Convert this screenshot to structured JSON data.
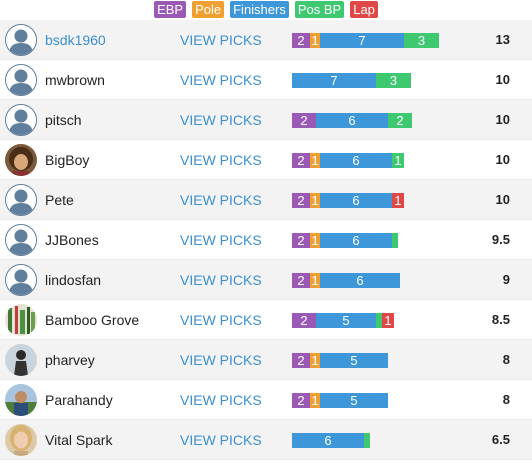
{
  "legend": [
    {
      "key": "ebp",
      "label": "EBP",
      "color": "#9b59b6"
    },
    {
      "key": "pole",
      "label": "Pole",
      "color": "#f0a030"
    },
    {
      "key": "fin",
      "label": "Finishers",
      "color": "#3d97d8"
    },
    {
      "key": "posbp",
      "label": "Pos BP",
      "color": "#3ec870"
    },
    {
      "key": "lap",
      "label": "Lap",
      "color": "#e04848"
    }
  ],
  "view_label": "VIEW PICKS",
  "rows": [
    {
      "name": "bsdk1960",
      "self": true,
      "avatar": "default",
      "score": "13",
      "segments": [
        {
          "k": "ebp",
          "v": "2",
          "w": 18
        },
        {
          "k": "pole",
          "v": "1",
          "w": 10
        },
        {
          "k": "fin",
          "v": "7",
          "w": 84
        },
        {
          "k": "posbp",
          "v": "3",
          "w": 35
        }
      ]
    },
    {
      "name": "mwbrown",
      "self": false,
      "avatar": "default",
      "score": "10",
      "segments": [
        {
          "k": "fin",
          "v": "7",
          "w": 84
        },
        {
          "k": "posbp",
          "v": "3",
          "w": 35
        }
      ]
    },
    {
      "name": "pitsch",
      "self": false,
      "avatar": "default",
      "score": "10",
      "segments": [
        {
          "k": "ebp",
          "v": "2",
          "w": 24
        },
        {
          "k": "fin",
          "v": "6",
          "w": 72
        },
        {
          "k": "posbp",
          "v": "2",
          "w": 24
        }
      ]
    },
    {
      "name": "BigBoy",
      "self": false,
      "avatar": "photo-curly-hair",
      "score": "10",
      "segments": [
        {
          "k": "ebp",
          "v": "2",
          "w": 18
        },
        {
          "k": "pole",
          "v": "1",
          "w": 10
        },
        {
          "k": "fin",
          "v": "6",
          "w": 72
        },
        {
          "k": "posbp",
          "v": "1",
          "w": 12
        }
      ]
    },
    {
      "name": "Pete",
      "self": false,
      "avatar": "default",
      "score": "10",
      "segments": [
        {
          "k": "ebp",
          "v": "2",
          "w": 18
        },
        {
          "k": "pole",
          "v": "1",
          "w": 10
        },
        {
          "k": "fin",
          "v": "6",
          "w": 72
        },
        {
          "k": "lap",
          "v": "1",
          "w": 12
        }
      ]
    },
    {
      "name": "JJBones",
      "self": false,
      "avatar": "default",
      "score": "9.5",
      "segments": [
        {
          "k": "ebp",
          "v": "2",
          "w": 18
        },
        {
          "k": "pole",
          "v": "1",
          "w": 10
        },
        {
          "k": "fin",
          "v": "6",
          "w": 72
        },
        {
          "k": "posbp",
          "v": "",
          "w": 6
        }
      ]
    },
    {
      "name": "lindosfan",
      "self": false,
      "avatar": "default",
      "score": "9",
      "segments": [
        {
          "k": "ebp",
          "v": "2",
          "w": 18
        },
        {
          "k": "pole",
          "v": "1",
          "w": 10
        },
        {
          "k": "fin",
          "v": "6",
          "w": 80
        }
      ]
    },
    {
      "name": "Bamboo Grove",
      "self": false,
      "avatar": "photo-bamboo",
      "score": "8.5",
      "segments": [
        {
          "k": "ebp",
          "v": "2",
          "w": 24
        },
        {
          "k": "fin",
          "v": "5",
          "w": 60
        },
        {
          "k": "posbp",
          "v": "",
          "w": 6
        },
        {
          "k": "lap",
          "v": "1",
          "w": 12
        }
      ]
    },
    {
      "name": "pharvey",
      "self": false,
      "avatar": "photo-silhouette",
      "score": "8",
      "segments": [
        {
          "k": "ebp",
          "v": "2",
          "w": 18
        },
        {
          "k": "pole",
          "v": "1",
          "w": 10
        },
        {
          "k": "fin",
          "v": "5",
          "w": 68
        }
      ]
    },
    {
      "name": "Parahandy",
      "self": false,
      "avatar": "photo-outdoor",
      "score": "8",
      "segments": [
        {
          "k": "ebp",
          "v": "2",
          "w": 18
        },
        {
          "k": "pole",
          "v": "1",
          "w": 10
        },
        {
          "k": "fin",
          "v": "5",
          "w": 68
        }
      ]
    },
    {
      "name": "Vital Spark",
      "self": false,
      "avatar": "photo-blonde",
      "score": "6.5",
      "segments": [
        {
          "k": "fin",
          "v": "6",
          "w": 72
        },
        {
          "k": "posbp",
          "v": "",
          "w": 6
        }
      ]
    }
  ]
}
